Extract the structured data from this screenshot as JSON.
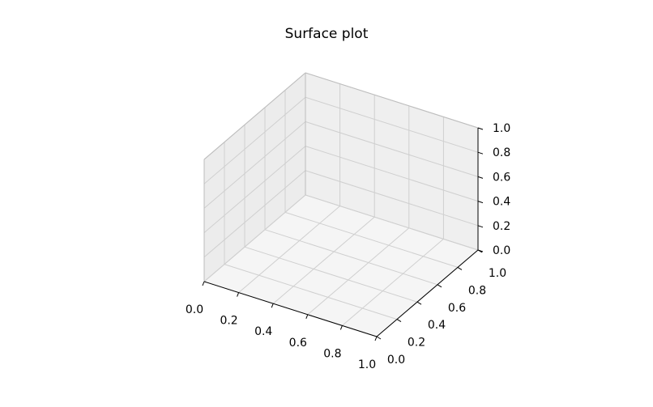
{
  "chart_data": {
    "type": "surface",
    "title": "Surface plot",
    "xlabel": "",
    "ylabel": "",
    "zlabel": "",
    "xlim": [
      0,
      1
    ],
    "ylim": [
      0,
      1
    ],
    "zlim": [
      0,
      1
    ],
    "x_ticks": [
      "0.0",
      "0.2",
      "0.4",
      "0.6",
      "0.8",
      "1.0"
    ],
    "y_ticks": [
      "0.0",
      "0.2",
      "0.4",
      "0.6",
      "0.8",
      "1.0"
    ],
    "z_ticks": [
      "0.0",
      "0.2",
      "0.4",
      "0.6",
      "0.8",
      "1.0"
    ],
    "grid": true,
    "series": [],
    "pane_color": "#f2f2f2",
    "grid_color": "#cfcfcf"
  }
}
